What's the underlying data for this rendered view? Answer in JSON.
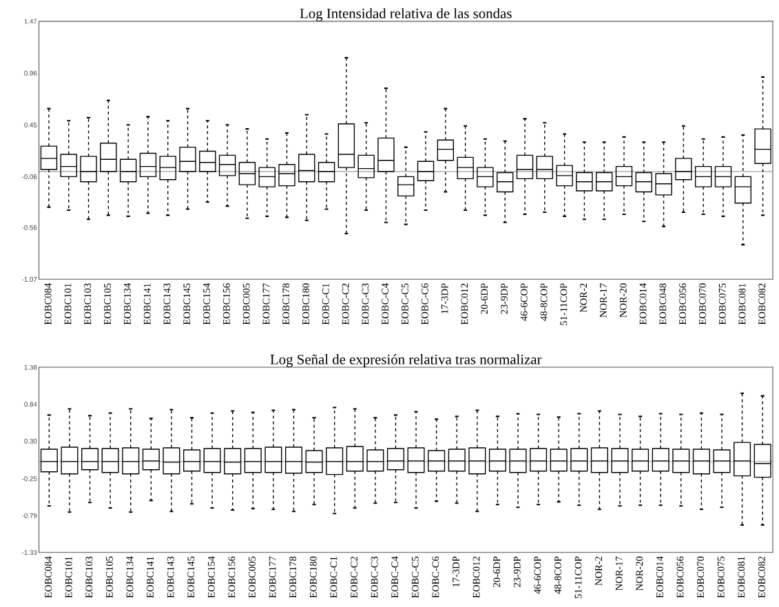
{
  "chart_data": [
    {
      "type": "box",
      "title": "Log Intensidad relativa de las sondas",
      "categories": [
        "EOBC084",
        "EOBC101",
        "EOBC103",
        "EOBC105",
        "EOBC134",
        "EOBC141",
        "EOBC143",
        "EOBC145",
        "EOBC154",
        "EOBC156",
        "EOBC005",
        "EOBC177",
        "EOBC178",
        "EOBC180",
        "EOBC-C1",
        "EOBC-C2",
        "EOBC-C3",
        "EOBC-C4",
        "EOBC-C5",
        "EOBC-C6",
        "17-3DP",
        "EOBC012",
        "20-6DP",
        "23-9DP",
        "46-6COP",
        "48-8COP",
        "51-11COP",
        "NOR-2",
        "NOR-17",
        "NOR-20",
        "EOBC014",
        "EOBC048",
        "EOBC056",
        "EOBC070",
        "EOBC075",
        "EOBC081",
        "EOBC082"
      ],
      "boxes": [
        {
          "low": -0.36,
          "q1": 0.01,
          "median": 0.12,
          "q3": 0.24,
          "high": 0.61
        },
        {
          "low": -0.39,
          "q1": -0.06,
          "median": 0.04,
          "q3": 0.16,
          "high": 0.49
        },
        {
          "low": -0.48,
          "q1": -0.11,
          "median": -0.01,
          "q3": 0.14,
          "high": 0.52
        },
        {
          "low": -0.44,
          "q1": -0.01,
          "median": 0.11,
          "q3": 0.27,
          "high": 0.69
        },
        {
          "low": -0.45,
          "q1": -0.11,
          "median": -0.01,
          "q3": 0.11,
          "high": 0.45
        },
        {
          "low": -0.42,
          "q1": -0.06,
          "median": 0.04,
          "q3": 0.17,
          "high": 0.53
        },
        {
          "low": -0.44,
          "q1": -0.09,
          "median": 0.03,
          "q3": 0.14,
          "high": 0.49
        },
        {
          "low": -0.38,
          "q1": -0.01,
          "median": 0.09,
          "q3": 0.23,
          "high": 0.61
        },
        {
          "low": -0.31,
          "q1": -0.01,
          "median": 0.08,
          "q3": 0.19,
          "high": 0.49
        },
        {
          "low": -0.35,
          "q1": -0.05,
          "median": 0.06,
          "q3": 0.15,
          "high": 0.45
        },
        {
          "low": -0.47,
          "q1": -0.14,
          "median": -0.03,
          "q3": 0.08,
          "high": 0.41
        },
        {
          "low": -0.45,
          "q1": -0.16,
          "median": -0.06,
          "q3": 0.03,
          "high": 0.31
        },
        {
          "low": -0.46,
          "q1": -0.15,
          "median": -0.03,
          "q3": 0.06,
          "high": 0.37
        },
        {
          "low": -0.49,
          "q1": -0.11,
          "median": 0.0,
          "q3": 0.16,
          "high": 0.55
        },
        {
          "low": -0.38,
          "q1": -0.11,
          "median": -0.01,
          "q3": 0.08,
          "high": 0.36
        },
        {
          "low": -0.62,
          "q1": 0.03,
          "median": 0.16,
          "q3": 0.46,
          "high": 1.11
        },
        {
          "low": -0.39,
          "q1": -0.07,
          "median": 0.02,
          "q3": 0.15,
          "high": 0.47
        },
        {
          "low": -0.51,
          "q1": -0.01,
          "median": 0.1,
          "q3": 0.32,
          "high": 0.81
        },
        {
          "low": -0.53,
          "q1": -0.25,
          "median": -0.14,
          "q3": -0.06,
          "high": 0.23
        },
        {
          "low": -0.39,
          "q1": -0.1,
          "median": -0.01,
          "q3": 0.09,
          "high": 0.38
        },
        {
          "low": -0.21,
          "q1": 0.1,
          "median": 0.21,
          "q3": 0.3,
          "high": 0.61
        },
        {
          "low": -0.39,
          "q1": -0.08,
          "median": 0.03,
          "q3": 0.13,
          "high": 0.44
        },
        {
          "low": -0.44,
          "q1": -0.16,
          "median": -0.06,
          "q3": 0.03,
          "high": 0.31
        },
        {
          "low": -0.51,
          "q1": -0.21,
          "median": -0.11,
          "q3": -0.02,
          "high": 0.29
        },
        {
          "low": -0.43,
          "q1": -0.08,
          "median": 0.01,
          "q3": 0.15,
          "high": 0.51
        },
        {
          "low": -0.41,
          "q1": -0.08,
          "median": 0.01,
          "q3": 0.14,
          "high": 0.47
        },
        {
          "low": -0.45,
          "q1": -0.15,
          "median": -0.05,
          "q3": 0.05,
          "high": 0.36
        },
        {
          "low": -0.48,
          "q1": -0.2,
          "median": -0.11,
          "q3": -0.02,
          "high": 0.28
        },
        {
          "low": -0.48,
          "q1": -0.2,
          "median": -0.11,
          "q3": -0.02,
          "high": 0.28
        },
        {
          "low": -0.43,
          "q1": -0.15,
          "median": -0.06,
          "q3": 0.04,
          "high": 0.33
        },
        {
          "low": -0.5,
          "q1": -0.21,
          "median": -0.11,
          "q3": -0.02,
          "high": 0.28
        },
        {
          "low": -0.55,
          "q1": -0.24,
          "median": -0.13,
          "q3": -0.03,
          "high": 0.28
        },
        {
          "low": -0.41,
          "q1": -0.09,
          "median": -0.01,
          "q3": 0.12,
          "high": 0.44
        },
        {
          "low": -0.43,
          "q1": -0.16,
          "median": -0.06,
          "q3": 0.04,
          "high": 0.31
        },
        {
          "low": -0.45,
          "q1": -0.16,
          "median": -0.06,
          "q3": 0.04,
          "high": 0.33
        },
        {
          "low": -0.73,
          "q1": -0.32,
          "median": -0.16,
          "q3": -0.06,
          "high": 0.35
        },
        {
          "low": -0.44,
          "q1": 0.07,
          "median": 0.21,
          "q3": 0.41,
          "high": 0.92
        }
      ],
      "ylim": [
        -1.07,
        1.47
      ],
      "yticks": [
        -1.07,
        -0.56,
        -0.06,
        0.45,
        0.96,
        1.47
      ],
      "ref_lines": [
        {
          "axis": "y",
          "value": -0.01,
          "color": "#b0b0b0"
        }
      ]
    },
    {
      "type": "box",
      "title": "Log Señal de expresión relativa tras normalizar",
      "categories": [
        "EOBC084",
        "EOBC101",
        "EOBC103",
        "EOBC105",
        "EOBC134",
        "EOBC141",
        "EOBC143",
        "EOBC145",
        "EOBC154",
        "EOBC156",
        "EOBC005",
        "EOBC177",
        "EOBC178",
        "EOBC180",
        "EOBC-C1",
        "EOBC-C2",
        "EOBC-C3",
        "EOBC-C4",
        "EOBC-C5",
        "EOBC-C6",
        "17-3DP",
        "EOBC012",
        "20-6DP",
        "23-9DP",
        "46-6COP",
        "48-8COP",
        "51-11COP",
        "NOR-2",
        "NOR-17",
        "NOR-20",
        "EOBC014",
        "EOBC056",
        "EOBC070",
        "EOBC075",
        "EOBC081",
        "EOBC082"
      ],
      "boxes": [
        {
          "low": -0.65,
          "q1": -0.15,
          "median": 0.0,
          "q3": 0.18,
          "high": 0.68
        },
        {
          "low": -0.74,
          "q1": -0.18,
          "median": 0.0,
          "q3": 0.21,
          "high": 0.77
        },
        {
          "low": -0.6,
          "q1": -0.12,
          "median": 0.0,
          "q3": 0.19,
          "high": 0.67
        },
        {
          "low": -0.68,
          "q1": -0.16,
          "median": 0.0,
          "q3": 0.19,
          "high": 0.71
        },
        {
          "low": -0.74,
          "q1": -0.18,
          "median": 0.0,
          "q3": 0.2,
          "high": 0.77
        },
        {
          "low": -0.57,
          "q1": -0.12,
          "median": 0.01,
          "q3": 0.18,
          "high": 0.63
        },
        {
          "low": -0.73,
          "q1": -0.18,
          "median": -0.01,
          "q3": 0.2,
          "high": 0.76
        },
        {
          "low": -0.62,
          "q1": -0.14,
          "median": 0.0,
          "q3": 0.17,
          "high": 0.64
        },
        {
          "low": -0.68,
          "q1": -0.16,
          "median": 0.0,
          "q3": 0.19,
          "high": 0.71
        },
        {
          "low": -0.71,
          "q1": -0.18,
          "median": -0.01,
          "q3": 0.19,
          "high": 0.74
        },
        {
          "low": -0.69,
          "q1": -0.16,
          "median": 0.0,
          "q3": 0.19,
          "high": 0.72
        },
        {
          "low": -0.7,
          "q1": -0.16,
          "median": 0.0,
          "q3": 0.21,
          "high": 0.75
        },
        {
          "low": -0.73,
          "q1": -0.17,
          "median": 0.0,
          "q3": 0.21,
          "high": 0.76
        },
        {
          "low": -0.63,
          "q1": -0.16,
          "median": -0.01,
          "q3": 0.16,
          "high": 0.64
        },
        {
          "low": -0.76,
          "q1": -0.19,
          "median": 0.0,
          "q3": 0.2,
          "high": 0.79
        },
        {
          "low": -0.68,
          "q1": -0.14,
          "median": 0.0,
          "q3": 0.22,
          "high": 0.77
        },
        {
          "low": -0.61,
          "q1": -0.14,
          "median": 0.0,
          "q3": 0.17,
          "high": 0.64
        },
        {
          "low": -0.6,
          "q1": -0.12,
          "median": 0.01,
          "q3": 0.19,
          "high": 0.68
        },
        {
          "low": -0.68,
          "q1": -0.16,
          "median": 0.01,
          "q3": 0.2,
          "high": 0.73
        },
        {
          "low": -0.58,
          "q1": -0.14,
          "median": 0.01,
          "q3": 0.16,
          "high": 0.62
        },
        {
          "low": -0.61,
          "q1": -0.14,
          "median": 0.01,
          "q3": 0.18,
          "high": 0.66
        },
        {
          "low": -0.73,
          "q1": -0.18,
          "median": 0.01,
          "q3": 0.2,
          "high": 0.75
        },
        {
          "low": -0.63,
          "q1": -0.14,
          "median": 0.01,
          "q3": 0.18,
          "high": 0.66
        },
        {
          "low": -0.67,
          "q1": -0.16,
          "median": 0.01,
          "q3": 0.18,
          "high": 0.7
        },
        {
          "low": -0.63,
          "q1": -0.14,
          "median": 0.01,
          "q3": 0.19,
          "high": 0.69
        },
        {
          "low": -0.59,
          "q1": -0.14,
          "median": 0.01,
          "q3": 0.18,
          "high": 0.65
        },
        {
          "low": -0.64,
          "q1": -0.14,
          "median": 0.01,
          "q3": 0.19,
          "high": 0.7
        },
        {
          "low": -0.7,
          "q1": -0.16,
          "median": 0.01,
          "q3": 0.2,
          "high": 0.74
        },
        {
          "low": -0.65,
          "q1": -0.16,
          "median": 0.01,
          "q3": 0.19,
          "high": 0.69
        },
        {
          "low": -0.64,
          "q1": -0.14,
          "median": 0.01,
          "q3": 0.18,
          "high": 0.66
        },
        {
          "low": -0.64,
          "q1": -0.14,
          "median": 0.01,
          "q3": 0.19,
          "high": 0.7
        },
        {
          "low": -0.65,
          "q1": -0.16,
          "median": 0.01,
          "q3": 0.18,
          "high": 0.69
        },
        {
          "low": -0.7,
          "q1": -0.18,
          "median": 0.01,
          "q3": 0.18,
          "high": 0.71
        },
        {
          "low": -0.67,
          "q1": -0.16,
          "median": 0.01,
          "q3": 0.17,
          "high": 0.69
        },
        {
          "low": -0.93,
          "q1": -0.21,
          "median": 0.01,
          "q3": 0.28,
          "high": 1.0
        },
        {
          "low": -0.93,
          "q1": -0.23,
          "median": -0.03,
          "q3": 0.25,
          "high": 0.96
        }
      ],
      "ylim": [
        -1.33,
        1.38
      ],
      "yticks": [
        -1.33,
        -0.79,
        -0.25,
        {
          "value": 0.3,
          "label": "0.30"
        },
        0.84,
        1.38
      ],
      "ref_lines": [
        {
          "axis": "y",
          "value": 0.0,
          "color": "#b0b0b0"
        }
      ]
    }
  ]
}
